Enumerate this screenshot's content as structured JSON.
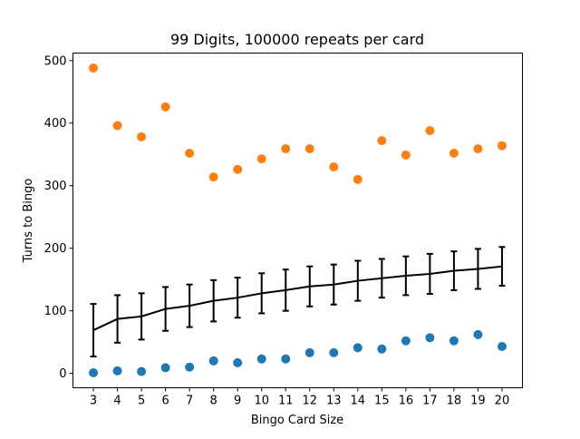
{
  "chart_data": {
    "type": "scatter",
    "title": "99 Digits, 100000 repeats per card",
    "xlabel": "Bingo Card Size",
    "ylabel": "Turns to Bingo",
    "x": [
      3,
      4,
      5,
      6,
      7,
      8,
      9,
      10,
      11,
      12,
      13,
      14,
      15,
      16,
      17,
      18,
      19,
      20
    ],
    "xlim": [
      2.15,
      20.85
    ],
    "ylim": [
      -23,
      512
    ],
    "yticks": [
      0,
      100,
      200,
      300,
      400,
      500
    ],
    "grid": false,
    "series": [
      {
        "kind": "scatter",
        "color": "#ff7f0e",
        "values": [
          488,
          396,
          378,
          426,
          352,
          314,
          326,
          343,
          359,
          359,
          330,
          310,
          372,
          349,
          388,
          352,
          359,
          364
        ]
      },
      {
        "kind": "scatter",
        "color": "#1f77b4",
        "values": [
          1,
          4,
          3,
          9,
          10,
          20,
          17,
          23,
          23,
          33,
          33,
          41,
          39,
          52,
          57,
          52,
          62,
          43
        ]
      },
      {
        "kind": "line-errorbar",
        "color": "#000000",
        "values": [
          69,
          87,
          91,
          103,
          108,
          116,
          121,
          128,
          133,
          139,
          142,
          148,
          152,
          156,
          159,
          164,
          167,
          171
        ],
        "errors": [
          42,
          38,
          37,
          35,
          34,
          33,
          32,
          32,
          33,
          32,
          32,
          32,
          31,
          31,
          32,
          31,
          32,
          31
        ]
      }
    ]
  }
}
